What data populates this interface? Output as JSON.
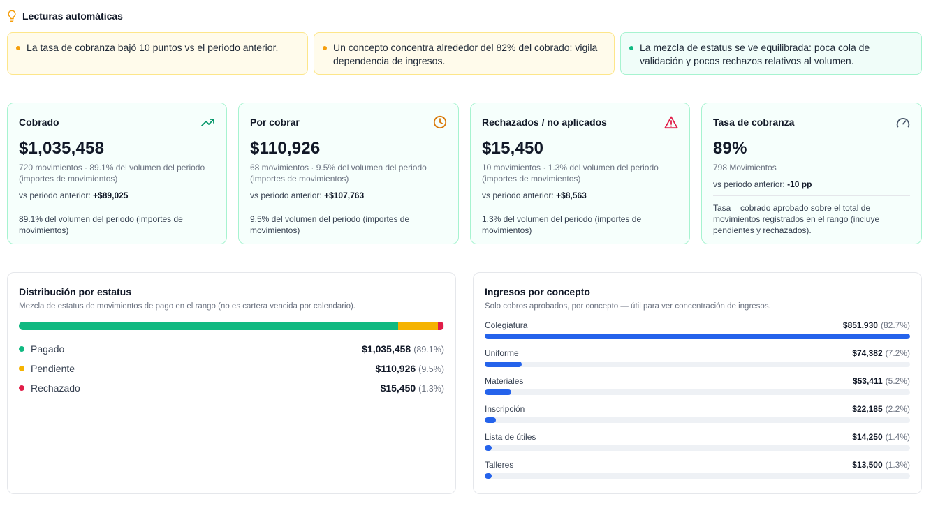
{
  "insights": {
    "title": "Lecturas automáticas",
    "items": [
      {
        "text": "La tasa de cobranza bajó 10 puntos vs el periodo anterior.",
        "tone": "warn"
      },
      {
        "text": "Un concepto concentra alrededor del 82% del cobrado: vigila dependencia de ingresos.",
        "tone": "warn"
      },
      {
        "text": "La mezcla de estatus se ve equilibrada: poca cola de validación y pocos rechazos relativos al volumen.",
        "tone": "ok"
      }
    ]
  },
  "kpis": [
    {
      "label": "Cobrado",
      "icon": "trending-up-icon",
      "icon_color": "#059669",
      "value": "$1,035,458",
      "sub": "720 movimientos · 89.1% del volumen del periodo (importes de movimientos)",
      "vs_label": "vs periodo anterior:",
      "vs_value": "+$89,025",
      "note": "89.1% del volumen del periodo (importes de movimientos)"
    },
    {
      "label": "Por cobrar",
      "icon": "clock-icon",
      "icon_color": "#d97706",
      "value": "$110,926",
      "sub": "68 movimientos · 9.5% del volumen del periodo (importes de movimientos)",
      "vs_label": "vs periodo anterior:",
      "vs_value": "+$107,763",
      "note": "9.5% del volumen del periodo (importes de movimientos)"
    },
    {
      "label": "Rechazados / no aplicados",
      "icon": "warning-triangle-icon",
      "icon_color": "#e11d48",
      "value": "$15,450",
      "sub": "10 movimientos · 1.3% del volumen del periodo (importes de movimientos)",
      "vs_label": "vs periodo anterior:",
      "vs_value": "+$8,563",
      "note": "1.3% del volumen del periodo (importes de movimientos)"
    },
    {
      "label": "Tasa de cobranza",
      "icon": "gauge-icon",
      "icon_color": "#475569",
      "value": "89%",
      "sub": "798 Movimientos",
      "vs_label": "vs periodo anterior:",
      "vs_value": "-10 pp",
      "note": "Tasa = cobrado aprobado sobre el total de movimientos registrados en el rango (incluye pendientes y rechazados)."
    }
  ],
  "status_panel": {
    "title": "Distribución por estatus",
    "subtitle": "Mezcla de estatus de movimientos de pago en el rango (no es cartera vencida por calendario).",
    "rows": [
      {
        "label": "Pagado",
        "amount": "$1,035,458",
        "pct": "(89.1%)",
        "share": 89.1,
        "color": "#10b981"
      },
      {
        "label": "Pendiente",
        "amount": "$110,926",
        "pct": "(9.5%)",
        "share": 9.5,
        "color": "#f5b301"
      },
      {
        "label": "Rechazado",
        "amount": "$15,450",
        "pct": "(1.3%)",
        "share": 1.3,
        "color": "#e11d48"
      }
    ]
  },
  "concept_panel": {
    "title": "Ingresos por concepto",
    "subtitle": "Solo cobros aprobados, por concepto — útil para ver concentración de ingresos.",
    "rows": [
      {
        "label": "Colegiatura",
        "amount": "$851,930",
        "pct": "(82.7%)",
        "share": 100
      },
      {
        "label": "Uniforme",
        "amount": "$74,382",
        "pct": "(7.2%)",
        "share": 8.7
      },
      {
        "label": "Materiales",
        "amount": "$53,411",
        "pct": "(5.2%)",
        "share": 6.3
      },
      {
        "label": "Inscripción",
        "amount": "$22,185",
        "pct": "(2.2%)",
        "share": 2.6
      },
      {
        "label": "Lista de útiles",
        "amount": "$14,250",
        "pct": "(1.4%)",
        "share": 1.7
      },
      {
        "label": "Talleres",
        "amount": "$13,500",
        "pct": "(1.3%)",
        "share": 1.6
      }
    ]
  }
}
